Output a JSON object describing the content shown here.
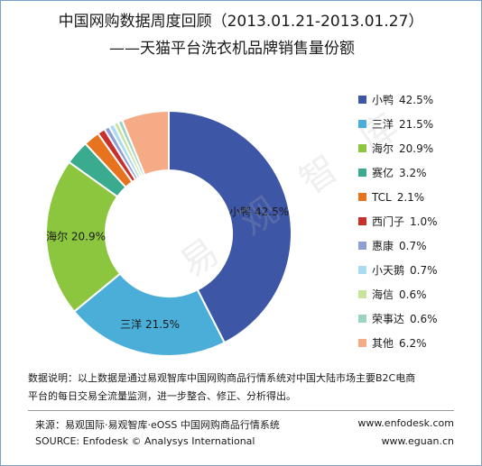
{
  "title": "中国网购数据周度回顾（2013.01.21-2013.01.27）",
  "subtitle": "——天猫平台洗衣机品牌销售量份额",
  "watermark": "易 观 智 库",
  "chart_data": {
    "type": "pie",
    "variant": "donut",
    "slices": [
      {
        "name": "小鸭",
        "value": 42.5,
        "label": "42.5%",
        "color": "#3d56a6"
      },
      {
        "name": "三洋",
        "value": 21.5,
        "label": "21.5%",
        "color": "#4aaed9"
      },
      {
        "name": "海尔",
        "value": 20.9,
        "label": "20.9%",
        "color": "#8cc63f"
      },
      {
        "name": "赛亿",
        "value": 3.2,
        "label": "3.2%",
        "color": "#3aab8e"
      },
      {
        "name": "TCL",
        "value": 2.1,
        "label": "2.1%",
        "color": "#e8731e"
      },
      {
        "name": "西门子",
        "value": 1.0,
        "label": "1.0%",
        "color": "#c9302c"
      },
      {
        "name": "惠康",
        "value": 0.7,
        "label": "0.7%",
        "color": "#8e9fd6"
      },
      {
        "name": "小天鹅",
        "value": 0.7,
        "label": "0.7%",
        "color": "#a9dcf3"
      },
      {
        "name": "海信",
        "value": 0.6,
        "label": "0.6%",
        "color": "#c6e49a"
      },
      {
        "name": "荣事达",
        "value": 0.6,
        "label": "0.6%",
        "color": "#9ad3c2"
      },
      {
        "name": "其他",
        "value": 6.2,
        "label": "6.2%",
        "color": "#f6ab87"
      }
    ],
    "slice_labels": [
      {
        "name": "小鸭",
        "label": "42.5%"
      },
      {
        "name": "三洋",
        "label": "21.5%"
      },
      {
        "name": "海尔",
        "label": "20.9%"
      }
    ],
    "legend_position": "right"
  },
  "footer": {
    "note_line1": "数据说明：以上数据是通过易观智库中国网购商品行情系统对中国大陆市场主要B2C电商",
    "note_line2": "平台的每日交易全流量监测，进一步整合、修正、分析得出。",
    "source_cn": "来源：易观国际·易观智库·eOSS 中国网购商品行情系统",
    "source_en": "SOURCE: Enfodesk © Analysys International",
    "website1": "www.enfodesk.com",
    "website2": "www.eguan.cn"
  }
}
